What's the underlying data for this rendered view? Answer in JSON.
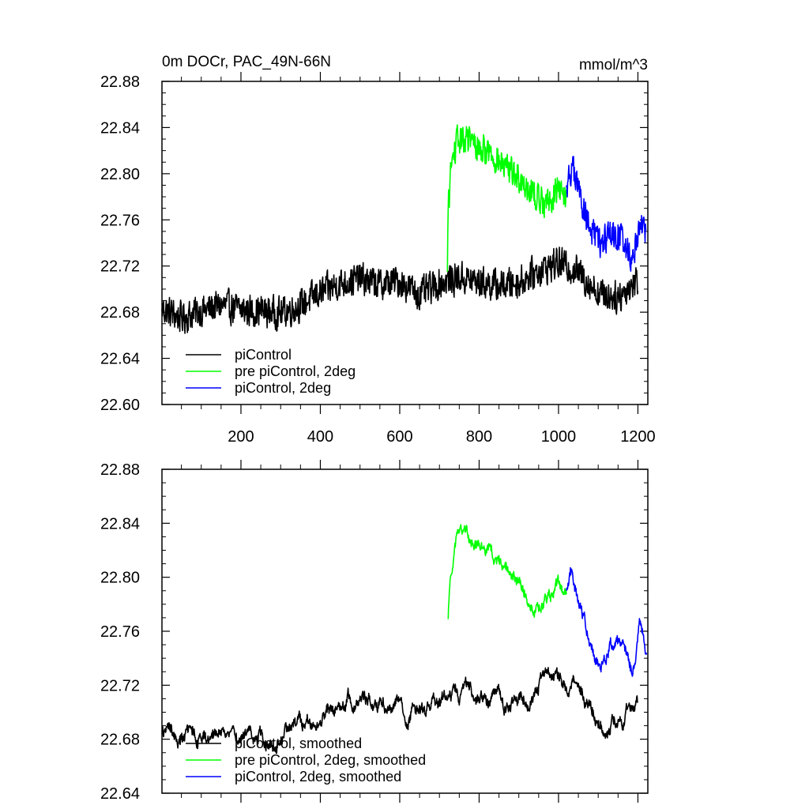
{
  "colors": {
    "black": "#000000",
    "green": "#00ff00",
    "blue": "#0000ff"
  },
  "chart_data": [
    {
      "type": "line",
      "title": "0m DOCr, PAC_49N-66N",
      "units": "mmol/m^3",
      "xlim": [
        1,
        1225
      ],
      "ylim": [
        22.6,
        22.88
      ],
      "yticks": [
        22.6,
        22.64,
        22.68,
        22.72,
        22.76,
        22.8,
        22.84,
        22.88
      ],
      "ytick_labels": [
        "22.60",
        "22.64",
        "22.68",
        "22.72",
        "22.76",
        "22.80",
        "22.84",
        "22.88"
      ],
      "xticks": [
        200,
        400,
        600,
        800,
        1000,
        1200
      ],
      "xtick_labels": [
        "200",
        "400",
        "600",
        "800",
        "1000",
        "1200"
      ],
      "legend": [
        {
          "label": "piControl",
          "color": "#000000"
        },
        {
          "label": "pre piControl, 2deg",
          "color": "#00ff00"
        },
        {
          "label": "piControl, 2deg",
          "color": "#0000ff"
        }
      ],
      "series": [
        {
          "name": "piControl",
          "color": "#000000",
          "x": [
            1,
            50,
            100,
            150,
            200,
            250,
            300,
            350,
            400,
            450,
            500,
            550,
            600,
            650,
            700,
            750,
            800,
            850,
            900,
            950,
            1000,
            1050,
            1100,
            1150,
            1200
          ],
          "y": [
            22.683,
            22.675,
            22.681,
            22.686,
            22.682,
            22.681,
            22.679,
            22.686,
            22.697,
            22.705,
            22.709,
            22.704,
            22.707,
            22.695,
            22.705,
            22.71,
            22.706,
            22.703,
            22.706,
            22.716,
            22.723,
            22.715,
            22.697,
            22.693,
            22.708
          ],
          "noise": 0.013
        },
        {
          "name": "pre piControl, 2deg",
          "color": "#00ff00",
          "x": [
            720,
            722,
            730,
            745,
            770,
            800,
            830,
            860,
            890,
            920,
            950,
            975,
            1000,
            1020
          ],
          "y": [
            22.715,
            22.77,
            22.808,
            22.828,
            22.83,
            22.822,
            22.818,
            22.806,
            22.8,
            22.79,
            22.778,
            22.775,
            22.788,
            22.78
          ],
          "noise": 0.012
        },
        {
          "name": "piControl, 2deg",
          "color": "#0000ff",
          "x": [
            1020,
            1035,
            1055,
            1080,
            1105,
            1130,
            1160,
            1185,
            1205,
            1220
          ],
          "y": [
            22.79,
            22.806,
            22.78,
            22.752,
            22.738,
            22.748,
            22.745,
            22.725,
            22.758,
            22.748
          ],
          "noise": 0.012
        }
      ]
    },
    {
      "type": "line",
      "title": "",
      "xlim": [
        1,
        1225
      ],
      "ylim": [
        22.64,
        22.88
      ],
      "yticks": [
        22.64,
        22.68,
        22.72,
        22.76,
        22.8,
        22.84,
        22.88
      ],
      "ytick_labels": [
        "22.64",
        "22.68",
        "22.72",
        "22.76",
        "22.80",
        "22.84",
        "22.88"
      ],
      "xticks": [
        200,
        400,
        600,
        800,
        1000,
        1200
      ],
      "legend": [
        {
          "label": "piControl, smoothed",
          "color": "#000000"
        },
        {
          "label": "pre piControl, 2deg, smoothed",
          "color": "#00ff00"
        },
        {
          "label": "piControl, 2deg, smoothed",
          "color": "#0000ff"
        }
      ],
      "series": [
        {
          "name": "piControl, smoothed",
          "color": "#000000",
          "x": [
            1,
            50,
            100,
            150,
            200,
            250,
            300,
            350,
            400,
            450,
            500,
            550,
            600,
            650,
            700,
            750,
            800,
            850,
            900,
            950,
            1000,
            1050,
            1100,
            1150,
            1200
          ],
          "y": [
            22.685,
            22.678,
            22.682,
            22.688,
            22.684,
            22.683,
            22.681,
            22.688,
            22.699,
            22.706,
            22.711,
            22.706,
            22.709,
            22.697,
            22.706,
            22.711,
            22.707,
            22.705,
            22.707,
            22.718,
            22.724,
            22.716,
            22.699,
            22.695,
            22.708
          ],
          "noise": 0.01
        },
        {
          "name": "pre piControl, 2deg, smoothed",
          "color": "#00ff00",
          "x": [
            722,
            728,
            745,
            770,
            800,
            830,
            860,
            890,
            920,
            950,
            975,
            1000,
            1020
          ],
          "y": [
            22.769,
            22.8,
            22.832,
            22.832,
            22.818,
            22.822,
            22.805,
            22.798,
            22.787,
            22.778,
            22.782,
            22.792,
            22.785
          ],
          "noise": 0.009
        },
        {
          "name": "piControl, 2deg, smoothed",
          "color": "#0000ff",
          "x": [
            1020,
            1030,
            1055,
            1080,
            1105,
            1130,
            1160,
            1185,
            1205,
            1222
          ],
          "y": [
            22.79,
            22.802,
            22.778,
            22.748,
            22.735,
            22.75,
            22.748,
            22.728,
            22.76,
            22.745
          ],
          "noise": 0.009
        }
      ]
    }
  ]
}
